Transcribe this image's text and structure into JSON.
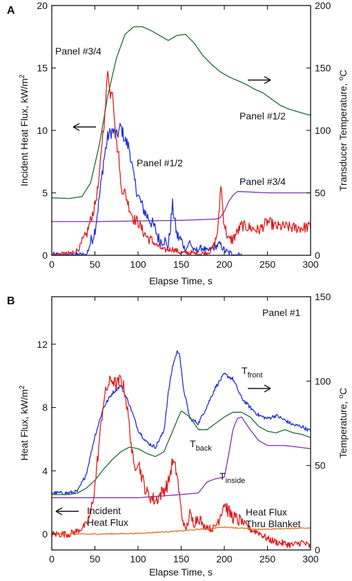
{
  "chart_data": [
    {
      "panel_label": "A",
      "type": "line",
      "xlabel": "Elapse Time, s",
      "ylabel_left": "Incident Heat Flux, kW/m",
      "ylabel_left_sup": "2",
      "ylabel_right": "Transducer Temperature, ",
      "ylabel_right_sup": "o",
      "ylabel_right_unit": "C",
      "xlim": [
        0,
        300
      ],
      "ylim_left": [
        0,
        20
      ],
      "ylim_right": [
        0,
        200
      ],
      "xticks": [
        0,
        50,
        100,
        150,
        200,
        250,
        300
      ],
      "yticks_left": [
        0,
        5,
        10,
        15,
        20
      ],
      "yticks_right": [
        0,
        50,
        100,
        150,
        200
      ],
      "series": [
        {
          "name": "Panel #1/2",
          "axis": "right",
          "color": "#1a6b2a",
          "x": [
            0,
            20,
            35,
            45,
            55,
            65,
            75,
            85,
            95,
            105,
            115,
            125,
            135,
            145,
            155,
            165,
            175,
            185,
            195,
            205,
            215,
            225,
            235,
            245,
            255,
            265,
            275,
            285,
            300
          ],
          "y": [
            46,
            45.5,
            47,
            58,
            88,
            128,
            158,
            177,
            183,
            183,
            180,
            176,
            172,
            176,
            177,
            170,
            160,
            153,
            147,
            143,
            140,
            137,
            133,
            130,
            125,
            120,
            117,
            115,
            112
          ]
        },
        {
          "name": "Panel #3/4",
          "axis": "right",
          "color": "#7a2fb0",
          "x": [
            0,
            50,
            100,
            150,
            190,
            195,
            200,
            205,
            210,
            215,
            220,
            250,
            300
          ],
          "y": [
            27,
            27,
            27.5,
            28,
            29,
            30,
            35,
            43,
            48,
            51,
            51,
            50,
            50
          ]
        },
        {
          "name": "Panel #1/2",
          "axis": "left",
          "color": "#1f2fd6",
          "x": [
            0,
            40,
            50,
            55,
            60,
            65,
            70,
            75,
            80,
            85,
            90,
            95,
            100,
            105,
            110,
            115,
            120,
            125,
            130,
            135,
            140,
            145,
            150,
            155,
            160,
            165,
            170,
            175,
            180,
            185,
            190,
            195,
            200,
            205,
            210,
            215,
            220
          ],
          "y": [
            0,
            0,
            2,
            4.5,
            7.5,
            9.5,
            10,
            9.5,
            10.3,
            9.2,
            8.6,
            6.2,
            4.8,
            3.9,
            3.2,
            2.7,
            2.1,
            1.1,
            1.3,
            0.6,
            4.0,
            1.6,
            1.2,
            0.4,
            1.1,
            0.3,
            0.5,
            0.6,
            0.3,
            0.5,
            0.7,
            0.9,
            0.4,
            0.2,
            0.1,
            0,
            0
          ]
        },
        {
          "name": "Panel #3/4",
          "axis": "left",
          "color": "#e01b1b",
          "x": [
            0,
            20,
            30,
            40,
            45,
            50,
            55,
            58,
            62,
            65,
            68,
            70,
            72,
            75,
            78,
            80,
            85,
            90,
            95,
            100,
            105,
            110,
            120,
            130,
            140,
            150,
            160,
            170,
            180,
            185,
            190,
            193,
            196,
            199,
            201,
            205,
            210,
            220,
            230,
            240,
            250,
            260,
            270,
            280,
            290,
            300
          ],
          "y": [
            0,
            0.1,
            0.4,
            1.6,
            2.8,
            4.0,
            6.0,
            9.0,
            11.5,
            15.2,
            12.5,
            13.6,
            11.8,
            9.0,
            7.8,
            5.5,
            5.0,
            3.8,
            2.9,
            2.7,
            2.0,
            1.5,
            0.9,
            0.4,
            0.5,
            0.2,
            0.2,
            0.1,
            0.2,
            0.4,
            1.2,
            2.3,
            5.8,
            3.0,
            2.2,
            1.2,
            1.3,
            2.4,
            2.2,
            2.0,
            2.7,
            2.3,
            2.3,
            2.2,
            2.2,
            2.3
          ]
        }
      ],
      "annotations": [
        {
          "text": "Panel #3/4"
        },
        {
          "text": "Panel #1/2"
        },
        {
          "text": "Panel #1/2"
        },
        {
          "text": "Panel #3/4"
        }
      ]
    },
    {
      "panel_label": "B",
      "type": "line",
      "xlabel": "Elapse Time, s",
      "ylabel_left": "Heat Flux, kW/m",
      "ylabel_left_sup": "2",
      "ylabel_right": "Temperature, ",
      "ylabel_right_sup": "o",
      "ylabel_right_unit": "C",
      "xlim": [
        0,
        300
      ],
      "ylim_left": [
        -1,
        15
      ],
      "ylim_right": [
        0,
        150
      ],
      "xticks": [
        0,
        50,
        100,
        150,
        200,
        250,
        300
      ],
      "yticks_left": [
        0,
        4,
        8,
        12
      ],
      "yticks_right": [
        0,
        50,
        100,
        150
      ],
      "series": [
        {
          "name": "T_front",
          "axis": "left",
          "color": "#1f2fd6",
          "x": [
            0,
            20,
            30,
            40,
            50,
            60,
            70,
            80,
            90,
            100,
            110,
            120,
            130,
            135,
            140,
            145,
            148,
            152,
            160,
            170,
            180,
            190,
            200,
            210,
            220,
            230,
            240,
            250,
            260,
            270,
            280,
            290,
            300
          ],
          "y": [
            2.6,
            2.6,
            2.7,
            3.8,
            6.2,
            8.0,
            8.9,
            9.4,
            8.2,
            6.6,
            5.8,
            5.5,
            6.5,
            8.9,
            10.6,
            11.5,
            11.5,
            9.4,
            7.3,
            7.0,
            8.1,
            9.3,
            10.1,
            9.8,
            8.6,
            8.0,
            7.5,
            7.3,
            7.5,
            7.2,
            6.9,
            6.8,
            6.5
          ]
        },
        {
          "name": "T_back",
          "axis": "left",
          "color": "#1a6b2a",
          "x": [
            0,
            20,
            30,
            40,
            50,
            60,
            70,
            80,
            90,
            100,
            110,
            120,
            130,
            140,
            150,
            160,
            170,
            180,
            190,
            200,
            210,
            220,
            230,
            240,
            250,
            260,
            270,
            280,
            290,
            300
          ],
          "y": [
            2.5,
            2.5,
            2.6,
            2.9,
            3.4,
            4.1,
            4.7,
            5.2,
            5.5,
            5.4,
            5.1,
            4.9,
            5.2,
            6.5,
            7.8,
            7.4,
            6.6,
            6.6,
            7.0,
            7.4,
            7.7,
            7.7,
            7.4,
            6.8,
            6.5,
            6.4,
            6.6,
            6.4,
            6.3,
            6.1
          ]
        },
        {
          "name": "T_inside",
          "axis": "left",
          "color": "#7a2fb0",
          "x": [
            0,
            50,
            100,
            150,
            170,
            180,
            190,
            200,
            205,
            210,
            215,
            220,
            230,
            240,
            250,
            270,
            300
          ],
          "y": [
            2.3,
            2.3,
            2.3,
            2.5,
            2.6,
            3.3,
            3.5,
            3.6,
            5.0,
            6.6,
            7.3,
            7.4,
            6.6,
            5.9,
            5.6,
            5.6,
            5.4
          ]
        },
        {
          "name": "Incident Heat Flux",
          "axis": "left",
          "color": "#e01b1b",
          "x": [
            0,
            20,
            30,
            40,
            45,
            50,
            55,
            60,
            65,
            70,
            75,
            80,
            85,
            90,
            95,
            100,
            105,
            110,
            120,
            130,
            135,
            140,
            145,
            150,
            155,
            160,
            165,
            170,
            175,
            180,
            185,
            190,
            195,
            200,
            205,
            210,
            215,
            220,
            230,
            240,
            250,
            260,
            270,
            280,
            290,
            300
          ],
          "y": [
            0,
            0,
            0.2,
            0.6,
            1.3,
            3.0,
            5.8,
            8.4,
            9.4,
            9.8,
            9.4,
            9.8,
            9.0,
            6.8,
            4.2,
            4.7,
            3.5,
            2.6,
            2.1,
            2.8,
            3.2,
            4.6,
            3.9,
            1.4,
            0.2,
            1.2,
            0.6,
            1.2,
            0.5,
            0.5,
            0.3,
            0.5,
            1.2,
            2.0,
            1.4,
            1.1,
            0.9,
            0.8,
            0.3,
            0.1,
            -0.3,
            -0.5,
            -0.6,
            -0.7,
            -0.5,
            -0.8
          ]
        },
        {
          "name": "Heat Flux Thru Blanket",
          "axis": "left",
          "color": "#e0752a",
          "x": [
            0,
            50,
            100,
            150,
            200,
            240,
            270,
            300
          ],
          "y": [
            0,
            0,
            0.05,
            0.2,
            0.45,
            0.3,
            0.35,
            0.4
          ]
        }
      ],
      "annotations": [
        {
          "text": "Panel #1"
        },
        {
          "text": "T",
          "sub": "front"
        },
        {
          "text": "T",
          "sub": "back"
        },
        {
          "text": "T",
          "sub": "inside"
        },
        {
          "text": "Incident"
        },
        {
          "text": "Heat Flux"
        },
        {
          "text": "Heat Flux"
        },
        {
          "text": "Thru Blanket"
        }
      ]
    }
  ]
}
